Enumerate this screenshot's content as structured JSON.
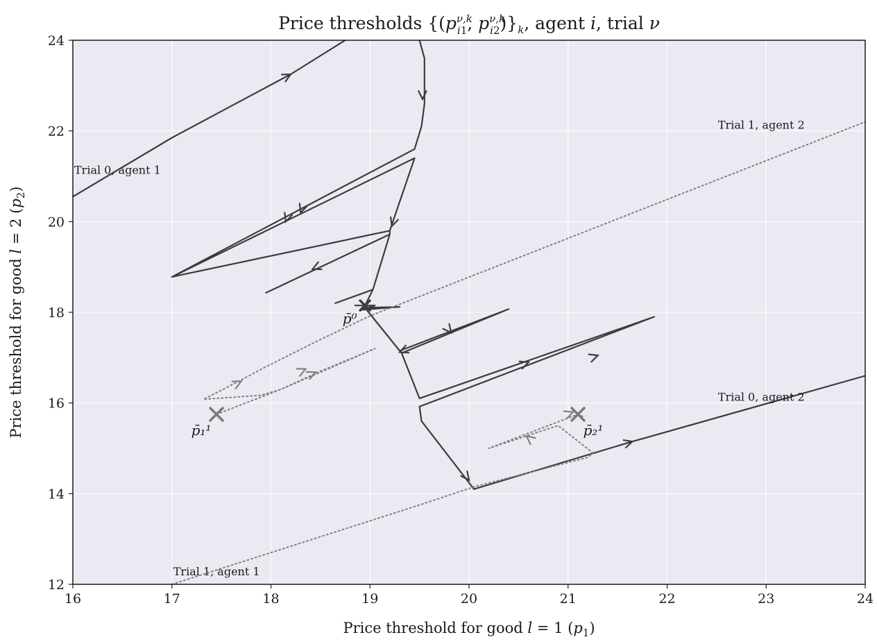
{
  "chart_data": {
    "type": "line",
    "title": "Price thresholds {(p_{i1}^{ν,k}, p_{i2}^{ν,k})}_k, agent i, trial ν",
    "xlabel": "Price threshold for good l = 1 (p₁)",
    "ylabel": "Price threshold for good l = 2 (p₂)",
    "xlim": [
      16,
      24
    ],
    "ylim": [
      12,
      24
    ],
    "xticks": [
      16,
      17,
      18,
      19,
      20,
      21,
      22,
      23,
      24
    ],
    "yticks": [
      12,
      14,
      16,
      18,
      20,
      22,
      24
    ],
    "grid": true,
    "colors": {
      "plot_bg": "#eaeaf2",
      "grid": "#ffffff",
      "trial0": "#3c3c3c",
      "trial1": "#808080"
    },
    "series": [
      {
        "style": "solid",
        "trial": 0,
        "agent": 1,
        "points": [
          [
            16.0,
            20.55
          ],
          [
            17.0,
            21.85
          ],
          [
            17.6,
            22.55
          ],
          [
            18.2,
            23.25
          ],
          [
            18.75,
            24.0
          ]
        ],
        "arrows": [
          [
            18.2,
            23.25
          ]
        ]
      },
      {
        "style": "solid",
        "trial": 0,
        "agent": 1,
        "points": [
          [
            19.5,
            24.0
          ],
          [
            19.55,
            23.6
          ],
          [
            19.55,
            22.6
          ],
          [
            19.52,
            22.1
          ],
          [
            19.45,
            21.6
          ],
          [
            17.0,
            18.78
          ],
          [
            19.45,
            21.4
          ],
          [
            19.2,
            19.8
          ],
          [
            17.0,
            18.78
          ],
          [
            19.2,
            19.8
          ],
          [
            19.2,
            19.72
          ],
          [
            17.95,
            18.43
          ],
          [
            19.2,
            19.72
          ],
          [
            19.03,
            18.5
          ],
          [
            18.65,
            18.2
          ],
          [
            19.03,
            18.5
          ],
          [
            18.95,
            18.15
          ],
          [
            18.85,
            18.15
          ],
          [
            19.05,
            18.15
          ],
          [
            18.9,
            18.05
          ],
          [
            19.3,
            18.12
          ],
          [
            18.95,
            18.1
          ],
          [
            19.3,
            17.15
          ],
          [
            20.4,
            18.07
          ],
          [
            19.32,
            17.1
          ],
          [
            19.5,
            16.1
          ],
          [
            21.87,
            17.9
          ],
          [
            19.5,
            15.92
          ],
          [
            19.52,
            15.6
          ],
          [
            20.05,
            14.1
          ]
        ],
        "arrows": [
          [
            19.53,
            22.7
          ],
          [
            18.3,
            20.2
          ],
          [
            18.15,
            20.0
          ],
          [
            19.22,
            19.9
          ],
          [
            18.42,
            18.95
          ],
          [
            19.82,
            17.55
          ],
          [
            21.3,
            17.05
          ],
          [
            20.6,
            16.9
          ],
          [
            19.3,
            17.12
          ],
          [
            20.0,
            14.3
          ]
        ]
      },
      {
        "style": "solid",
        "trial": 0,
        "agent": 2,
        "points": [
          [
            20.05,
            14.1
          ],
          [
            21.65,
            15.15
          ],
          [
            24.0,
            16.6
          ]
        ],
        "arrows": [
          [
            21.65,
            15.15
          ]
        ]
      },
      {
        "style": "dotted",
        "trial": 1,
        "agent": 1,
        "points": [
          [
            17.0,
            12.0
          ],
          [
            19.5,
            13.75
          ],
          [
            20.05,
            14.15
          ],
          [
            21.2,
            14.8
          ],
          [
            21.25,
            14.9
          ],
          [
            20.9,
            15.5
          ],
          [
            20.2,
            15.0
          ],
          [
            21.1,
            15.75
          ],
          [
            21.15,
            15.7
          ]
        ],
        "arrows": [
          [
            20.58,
            15.27
          ],
          [
            21.05,
            15.8
          ]
        ]
      },
      {
        "style": "dotted",
        "trial": 1,
        "agent": 2,
        "points": [
          [
            17.45,
            15.75
          ],
          [
            18.1,
            16.3
          ],
          [
            18.5,
            16.7
          ],
          [
            19.05,
            17.2
          ],
          [
            18.1,
            16.3
          ],
          [
            17.9,
            16.17
          ],
          [
            17.32,
            16.08
          ],
          [
            17.65,
            16.45
          ],
          [
            17.95,
            16.8
          ],
          [
            18.5,
            17.4
          ],
          [
            19.0,
            17.92
          ],
          [
            24.0,
            22.2
          ]
        ],
        "arrows": [
          [
            18.45,
            16.68
          ],
          [
            18.35,
            16.75
          ],
          [
            17.7,
            16.48
          ]
        ]
      }
    ],
    "points": [
      {
        "label": "p̄⁰",
        "x": 18.95,
        "y": 18.15,
        "style": "dark"
      },
      {
        "label": "p̄₁¹",
        "x": 17.45,
        "y": 15.75,
        "style": "gray"
      },
      {
        "label": "p̄₂¹",
        "x": 21.1,
        "y": 15.75,
        "style": "gray"
      }
    ],
    "annotations": [
      {
        "text": "Trial 0, agent 1",
        "x": 16.0,
        "y": 21.05
      },
      {
        "text": "Trial 1, agent 2",
        "x": 22.5,
        "y": 22.05
      },
      {
        "text": "Trial 0, agent 2",
        "x": 22.5,
        "y": 16.05
      },
      {
        "text": "Trial 1, agent 1",
        "x": 17.0,
        "y": 12.2
      }
    ]
  }
}
